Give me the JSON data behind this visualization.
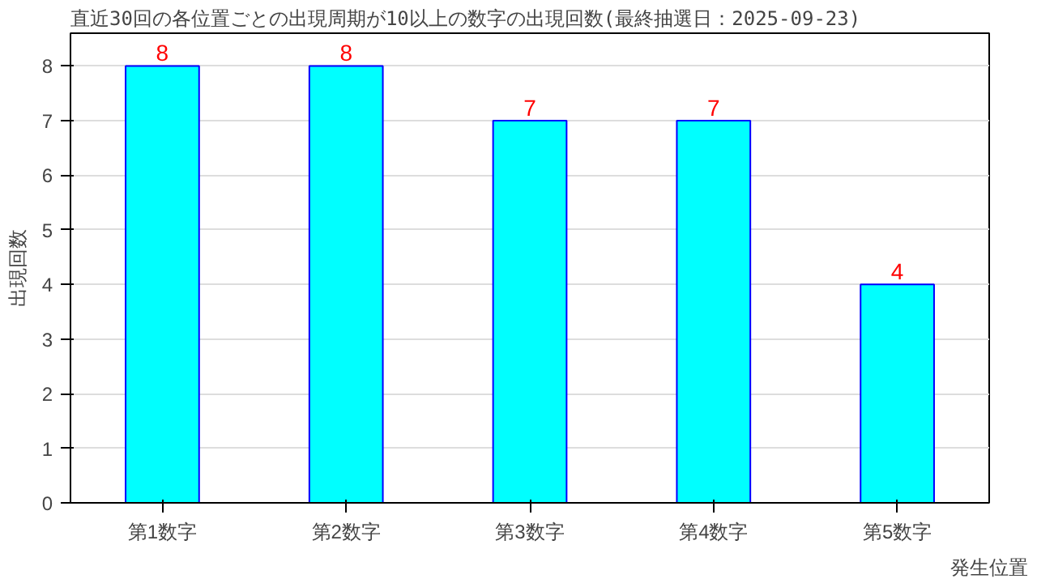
{
  "chart_data": {
    "type": "bar",
    "title": "直近30回の各位置ごとの出現周期が10以上の数字の出現回数(最終抽選日：2025-09-23)",
    "categories": [
      "第1数字",
      "第2数字",
      "第3数字",
      "第4数字",
      "第5数字"
    ],
    "values": [
      8,
      8,
      7,
      7,
      4
    ],
    "color": "#00ffff",
    "xlabel": "発生位置",
    "ylabel": "出現回数",
    "ylim": [
      0,
      8.6
    ],
    "yticks": [
      0,
      1,
      2,
      3,
      4,
      5,
      6,
      7,
      8
    ],
    "grid": "y",
    "data_labels": true
  }
}
